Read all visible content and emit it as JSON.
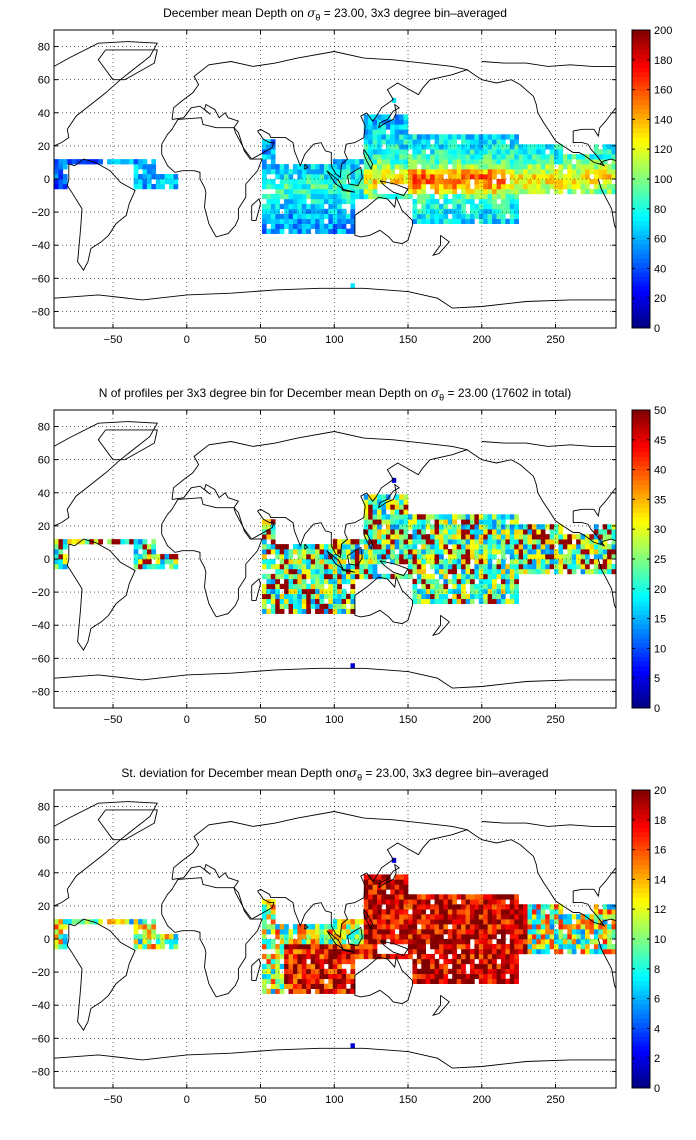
{
  "colors": {
    "colormap": "jet",
    "frame": "#000000",
    "grid": "#000000",
    "coast": "#000000",
    "background": "#ffffff"
  },
  "panels": [
    {
      "title_prefix": "December mean Depth on ",
      "sigma": "σ",
      "sigma_sub": "θ",
      "title_suffix": " = 23.00, 3x3 degree bin–averaged",
      "cbar_max": 200,
      "cbar_ticks": [
        "0",
        "20",
        "40",
        "60",
        "80",
        "100",
        "120",
        "140",
        "160",
        "180",
        "200"
      ],
      "field": "depth"
    },
    {
      "title_prefix": "N of profiles per 3x3 degree bin for December mean Depth on ",
      "sigma": "σ",
      "sigma_sub": "θ",
      "title_suffix": " = 23.00 (17602 in total)",
      "cbar_max": 50,
      "cbar_ticks": [
        "0",
        "5",
        "10",
        "15",
        "20",
        "25",
        "30",
        "35",
        "40",
        "45",
        "50"
      ],
      "field": "count"
    },
    {
      "title_prefix": "St. deviation for December mean Depth on",
      "sigma": "σ",
      "sigma_sub": "θ",
      "title_suffix": " = 23.00, 3x3 degree bin–averaged",
      "cbar_max": 20,
      "cbar_ticks": [
        "0",
        "2",
        "4",
        "6",
        "8",
        "10",
        "12",
        "14",
        "16",
        "18",
        "20"
      ],
      "field": "std"
    }
  ],
  "map": {
    "lon_range": [
      -90,
      291
    ],
    "lat_range": [
      -90,
      90
    ],
    "x_ticks": [
      -50,
      0,
      50,
      100,
      150,
      200,
      250
    ],
    "y_ticks": [
      -80,
      -60,
      -40,
      -20,
      0,
      20,
      40,
      60,
      80
    ],
    "x_tick_labels": [
      "−50",
      "0",
      "50",
      "100",
      "150",
      "200",
      "250"
    ],
    "y_tick_labels": [
      "−80",
      "−60",
      "−40",
      "−20",
      "0",
      "20",
      "40",
      "60",
      "80"
    ],
    "grid": "dotted"
  }
}
